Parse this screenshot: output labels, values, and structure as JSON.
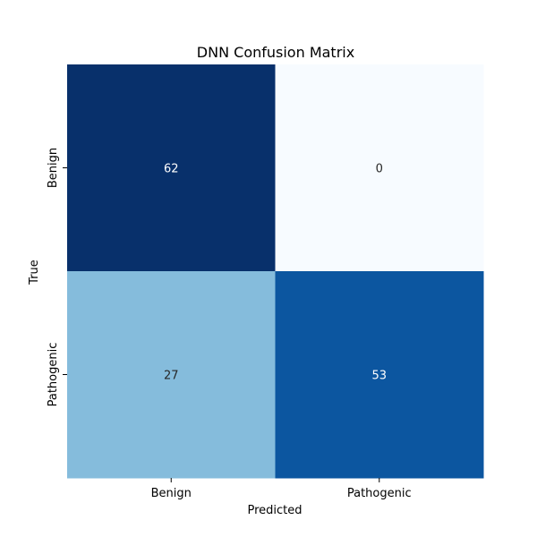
{
  "chart_data": {
    "type": "heatmap",
    "title": "DNN Confusion Matrix",
    "xlabel": "Predicted",
    "ylabel": "True",
    "x_categories": [
      "Benign",
      "Pathogenic"
    ],
    "y_categories": [
      "Benign",
      "Pathogenic"
    ],
    "values": [
      [
        62,
        0
      ],
      [
        27,
        53
      ]
    ],
    "colormap": "Blues",
    "value_range": [
      0,
      62
    ],
    "colorbar": false,
    "grid": false,
    "colors": {
      "min": "#f7fbff",
      "max": "#08306b",
      "dark_text": "#262626",
      "light_text": "#ffffff"
    }
  }
}
